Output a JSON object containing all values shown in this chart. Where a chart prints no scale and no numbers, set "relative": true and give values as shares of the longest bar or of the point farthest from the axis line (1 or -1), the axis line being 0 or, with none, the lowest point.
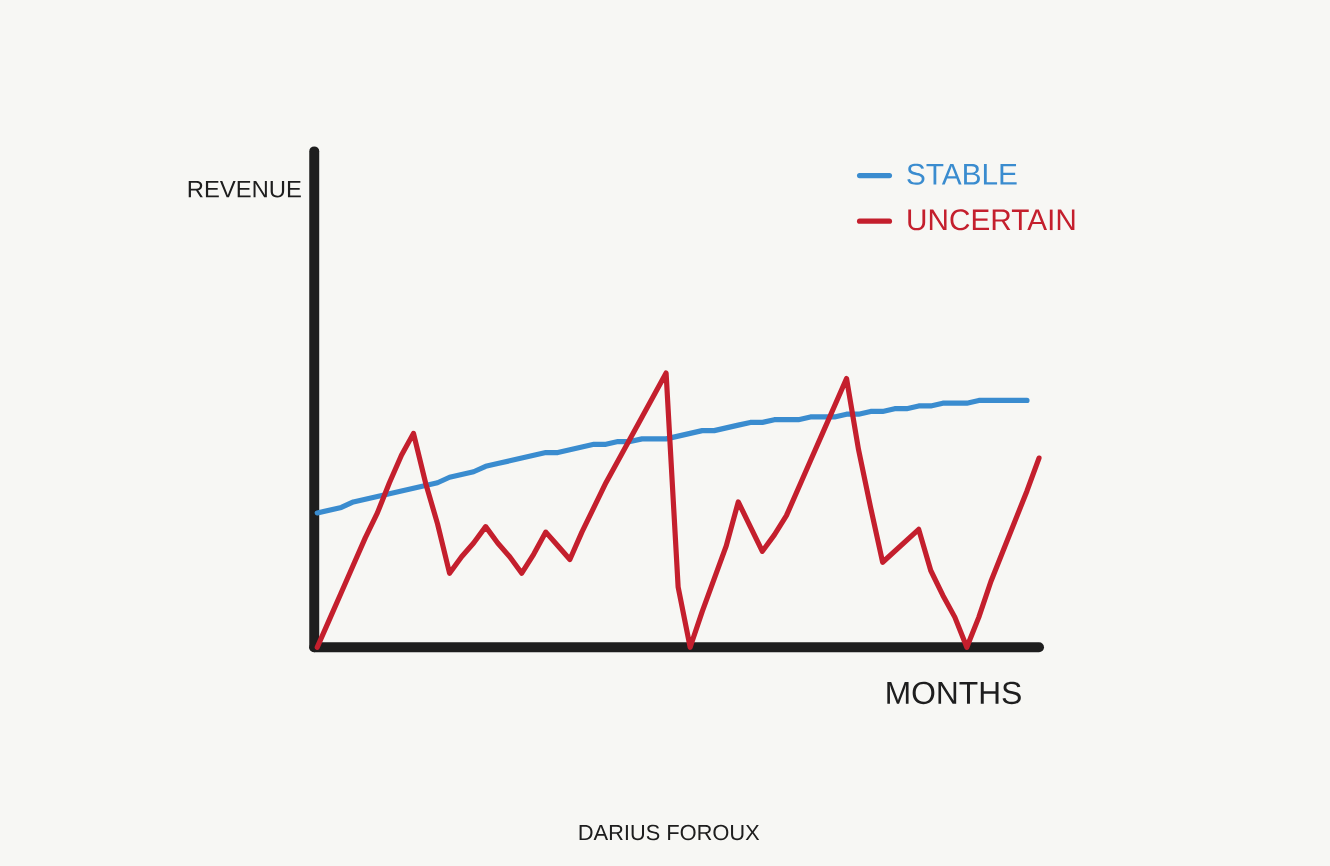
{
  "chart_data": {
    "type": "line",
    "relative": true,
    "xlabel": "MONTHS",
    "legend": "top right",
    "annotations": [
      "REVENUE",
      "DARIUS FOROUX"
    ],
    "categories": [
      null,
      null,
      null,
      null,
      null,
      null,
      null,
      null,
      null,
      null,
      null,
      null,
      null,
      null,
      null,
      null,
      null,
      null,
      null,
      null,
      null,
      null,
      null,
      null,
      null,
      null,
      null,
      null,
      null,
      null,
      null,
      null,
      null,
      null,
      null,
      null,
      null,
      null,
      null,
      null,
      null,
      null,
      null,
      null,
      null,
      null,
      null,
      null,
      null,
      null,
      null,
      null,
      null,
      null,
      null,
      null,
      null,
      null,
      null,
      null,
      null
    ],
    "series": [
      {
        "name": "STABLE",
        "color": "#3a8ccf",
        "values": [
          0.49,
          0.5,
          0.51,
          0.53,
          0.54,
          0.55,
          0.56,
          0.57,
          0.58,
          0.59,
          0.6,
          0.62,
          0.63,
          0.64,
          0.66,
          0.67,
          0.68,
          0.69,
          0.7,
          0.71,
          0.71,
          0.72,
          0.73,
          0.74,
          0.74,
          0.75,
          0.75,
          0.76,
          0.76,
          0.76,
          0.77,
          0.78,
          0.79,
          0.79,
          0.8,
          0.81,
          0.82,
          0.82,
          0.83,
          0.83,
          0.83,
          0.84,
          0.84,
          0.84,
          0.85,
          0.85,
          0.86,
          0.86,
          0.87,
          0.87,
          0.88,
          0.88,
          0.89,
          0.89,
          0.89,
          0.9,
          0.9,
          0.9,
          0.9,
          0.9,
          null
        ]
      },
      {
        "name": "UNCERTAIN",
        "color": "#c41f2d",
        "values": [
          0,
          0.1,
          0.2,
          0.3,
          0.4,
          0.49,
          0.6,
          0.7,
          0.78,
          0.6,
          0.45,
          0.27,
          0.33,
          0.38,
          0.44,
          0.38,
          0.33,
          0.27,
          0.34,
          0.42,
          0.37,
          0.32,
          0.42,
          0.51,
          0.6,
          0.68,
          0.76,
          0.84,
          0.92,
          1,
          0.22,
          0,
          0.13,
          0.25,
          0.37,
          0.53,
          0.44,
          0.35,
          0.41,
          0.48,
          0.58,
          0.68,
          0.78,
          0.88,
          0.98,
          0.72,
          0.51,
          0.31,
          0.35,
          0.39,
          0.43,
          0.28,
          0.19,
          0.11,
          0,
          0.11,
          0.24,
          0.35,
          0.46,
          0.57,
          0.69
        ]
      }
    ]
  }
}
